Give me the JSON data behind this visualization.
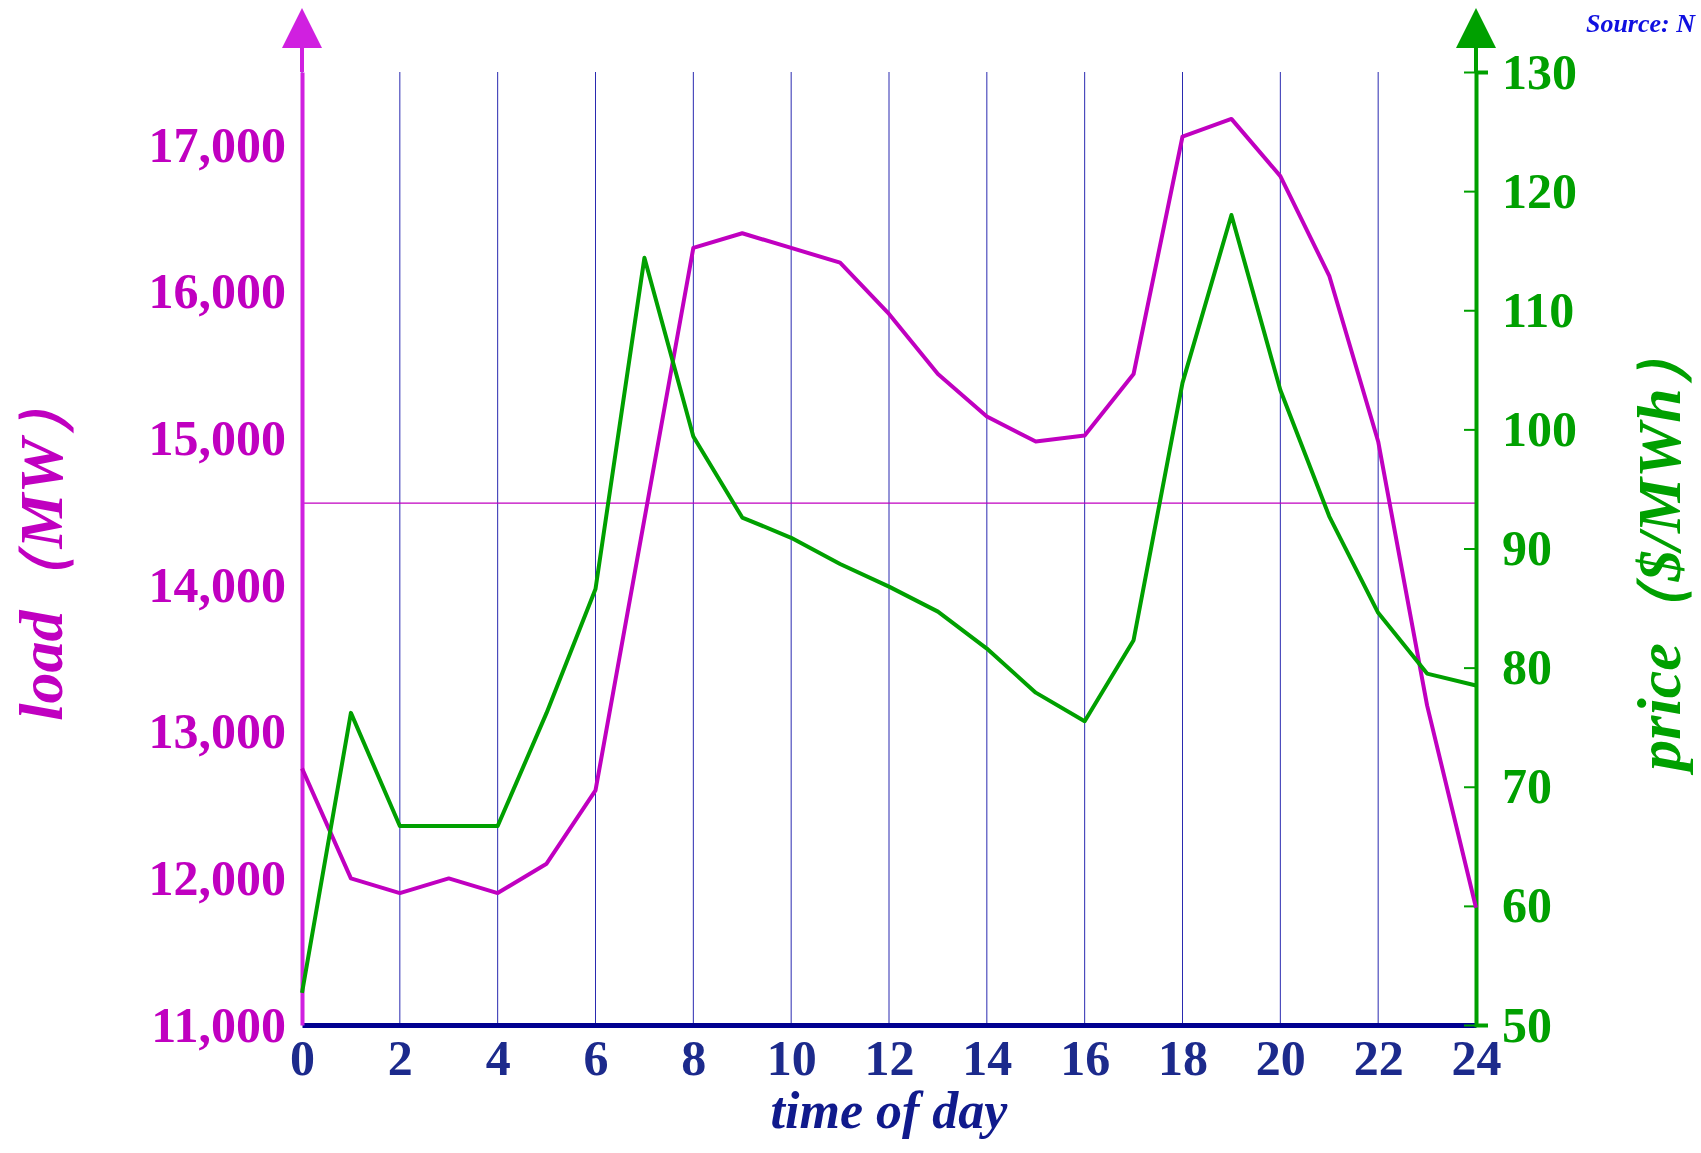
{
  "chart_data": {
    "type": "line",
    "xlabel": "time of day",
    "ylabel": "load（MW）",
    "y2label": "price（$/MWh）",
    "annotations": [
      "Source: N"
    ],
    "x": [
      0,
      1,
      2,
      3,
      4,
      5,
      6,
      7,
      8,
      9,
      10,
      11,
      12,
      13,
      14,
      15,
      16,
      17,
      18,
      19,
      20,
      21,
      22,
      23,
      24
    ],
    "series": [
      {
        "color": "#c000c0",
        "values": [
          12750,
          12000,
          11900,
          12000,
          11900,
          12100,
          12600,
          14450,
          16300,
          16400,
          16300,
          16200,
          15850,
          15440,
          15150,
          14980,
          15020,
          15440,
          17060,
          17180,
          16790,
          16110,
          14980,
          13180,
          11800
        ]
      },
      {
        "color": "#00a000",
        "axis": "y2",
        "values": [
          52.7,
          76.2,
          66.7,
          66.7,
          66.7,
          76.2,
          86.6,
          114.4,
          99.4,
          92.6,
          90.9,
          88.7,
          86.8,
          84.7,
          81.6,
          77.9,
          75.5,
          82.3,
          103.9,
          118.0,
          103.3,
          92.7,
          84.6,
          79.5,
          78.5
        ]
      }
    ],
    "xlim": [
      0,
      24
    ],
    "xticks": [
      0,
      2,
      4,
      6,
      8,
      10,
      12,
      14,
      16,
      18,
      20,
      22,
      24
    ],
    "ylim": [
      11000,
      17500
    ],
    "yticks": [
      {
        "value": 11000,
        "label": "11,000"
      },
      {
        "value": 12000,
        "label": "12,000"
      },
      {
        "value": 13000,
        "label": "13,000"
      },
      {
        "value": 14000,
        "label": "14,000"
      },
      {
        "value": 15000,
        "label": "15,000"
      },
      {
        "value": 16000,
        "label": "16,000"
      },
      {
        "value": 17000,
        "label": "17,000"
      }
    ],
    "y2lim": [
      50,
      130
    ],
    "y2ticks": [
      50,
      60,
      70,
      80,
      90,
      100,
      110,
      120,
      130
    ],
    "ref_lines": [
      {
        "axis": "y",
        "value": 14560,
        "color": "#c000c0"
      }
    ],
    "grid": "x",
    "line_style": "solid",
    "marker": "none"
  }
}
